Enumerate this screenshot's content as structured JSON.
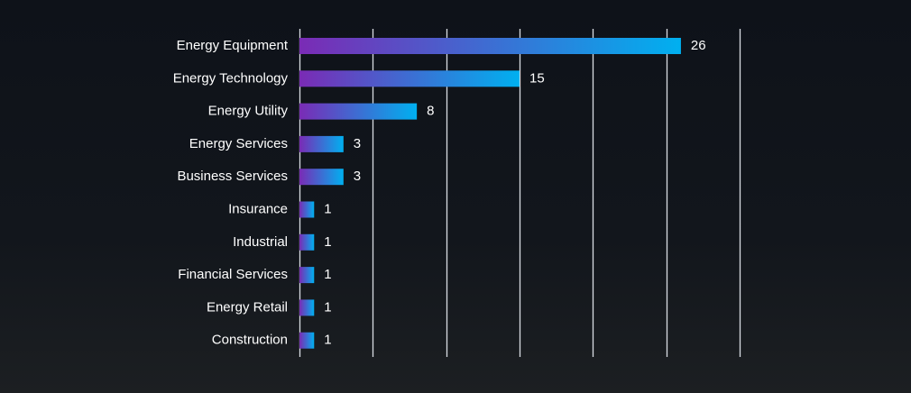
{
  "chart_data": {
    "type": "bar",
    "orientation": "horizontal",
    "categories": [
      "Energy Equipment",
      "Energy Technology",
      "Energy Utility",
      "Energy Services",
      "Business Services",
      "Insurance",
      "Industrial",
      "Financial Services",
      "Energy Retail",
      "Construction"
    ],
    "values": [
      26,
      15,
      8,
      3,
      3,
      1,
      1,
      1,
      1,
      1
    ],
    "xlim": [
      0,
      30
    ],
    "x_gridline_step": 5,
    "grid": true,
    "data_labels": true,
    "colors": {
      "bar_start": "#7a2bb5",
      "bar_end": "#00b0f0",
      "gridline": "#d9dde3",
      "text": "#ffffff",
      "background": "#0e1219"
    }
  }
}
